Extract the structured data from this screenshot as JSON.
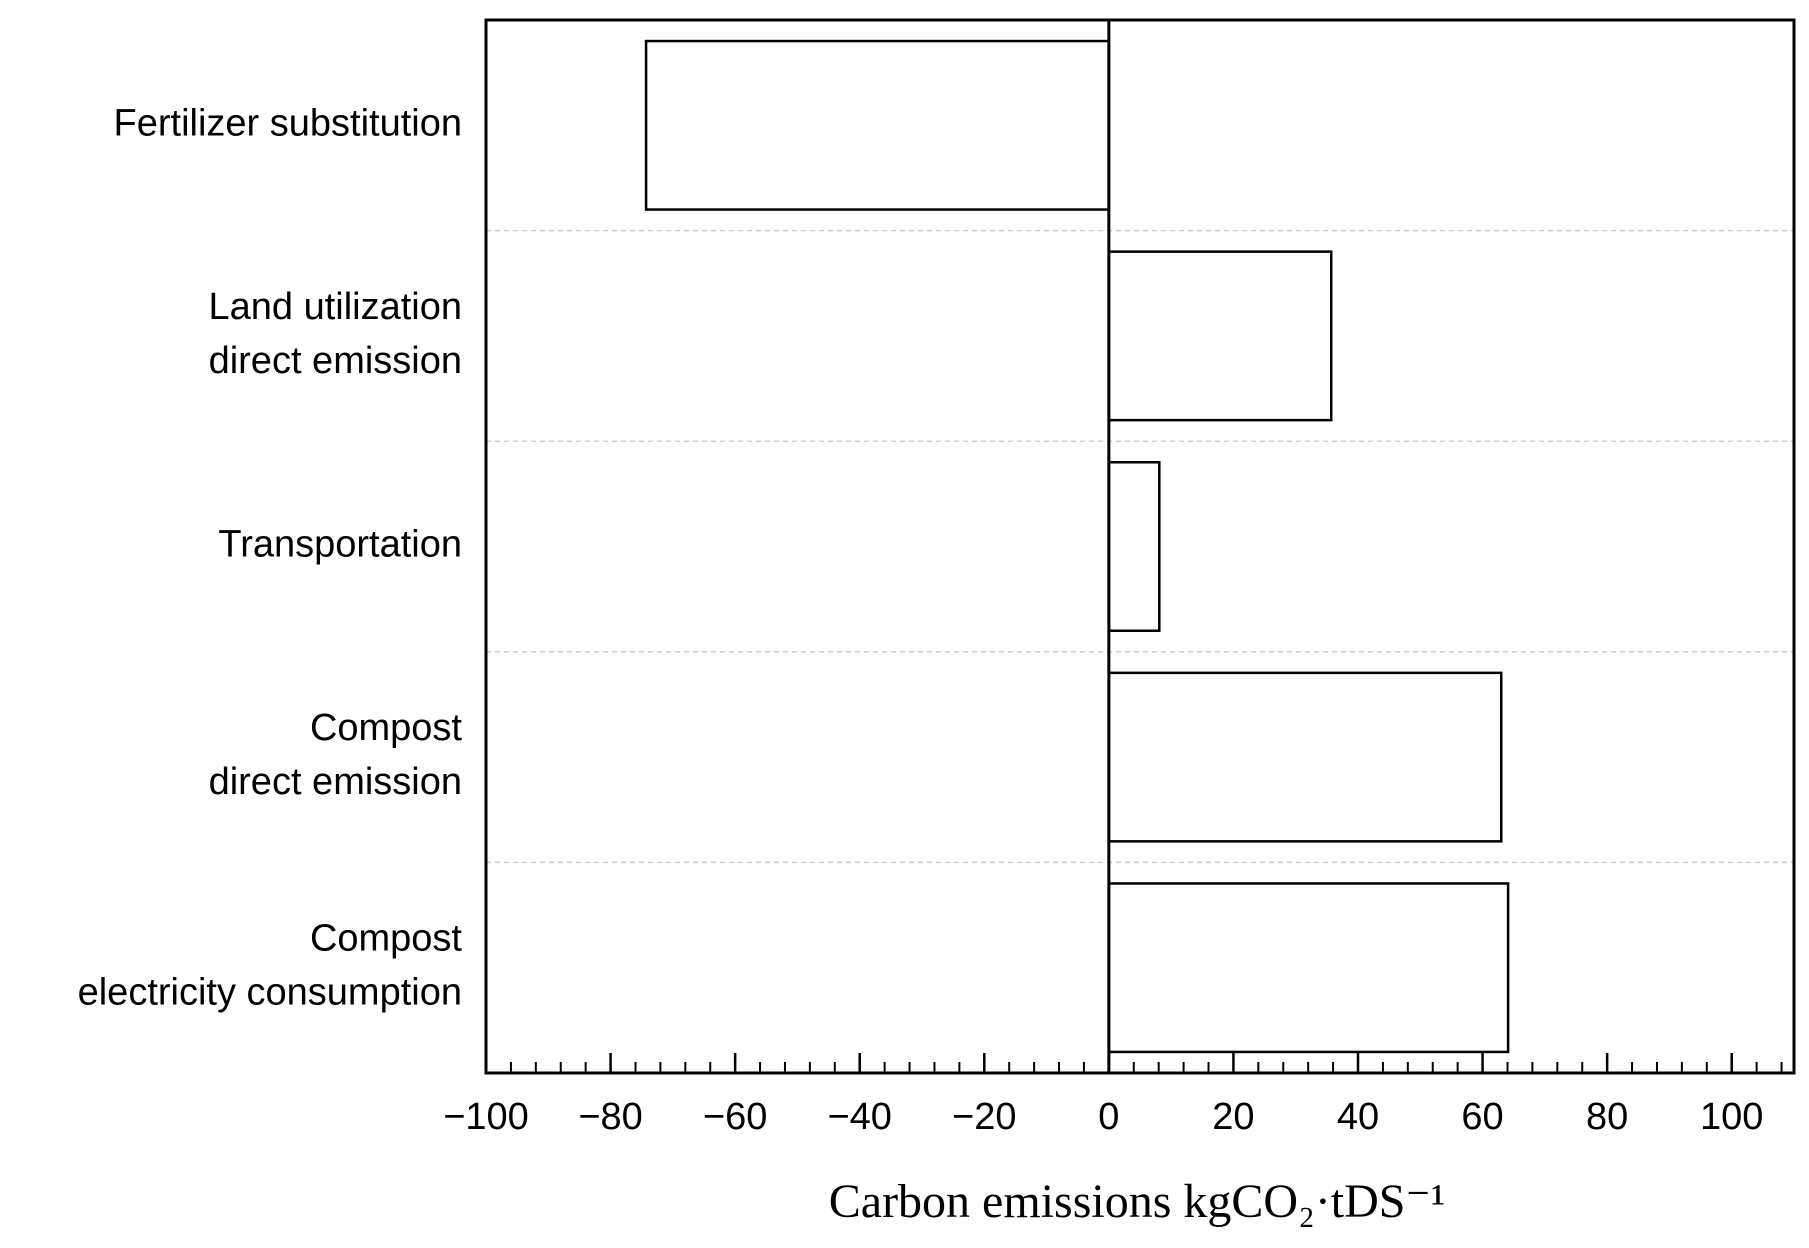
{
  "chart_data": {
    "type": "barh",
    "categories": [
      [
        "Fertilizer substitution"
      ],
      [
        "Land utilization",
        "direct emission"
      ],
      [
        "Transportation"
      ],
      [
        "Compost",
        "direct emission"
      ],
      [
        "Compost",
        "electricity consumption"
      ]
    ],
    "values": [
      -74.3,
      35.7,
      8.1,
      63.0,
      64.1
    ],
    "color": "#ffffff",
    "edgecolor": "#000000",
    "xlabel": "Carbon emissions kgCO₂·tDS⁻¹",
    "xlim": [
      -100,
      110
    ],
    "xticks": [
      {
        "value": -100,
        "label": "−100"
      },
      {
        "value": -80,
        "label": "−80"
      },
      {
        "value": -60,
        "label": "−60"
      },
      {
        "value": -40,
        "label": "−40"
      },
      {
        "value": -20,
        "label": "−20"
      },
      0,
      20,
      40,
      60,
      80,
      100
    ],
    "xticks_minor": [
      -96,
      -92,
      -88,
      -84,
      -76,
      -72,
      -68,
      -64,
      -56,
      -52,
      -48,
      -44,
      -36,
      -32,
      -28,
      -24,
      -16,
      -12,
      -8,
      -4,
      4,
      8,
      12,
      16,
      24,
      28,
      32,
      36,
      44,
      48,
      52,
      56,
      64,
      68,
      72,
      76,
      84,
      88,
      92,
      96,
      104,
      108
    ],
    "grid": true
  }
}
